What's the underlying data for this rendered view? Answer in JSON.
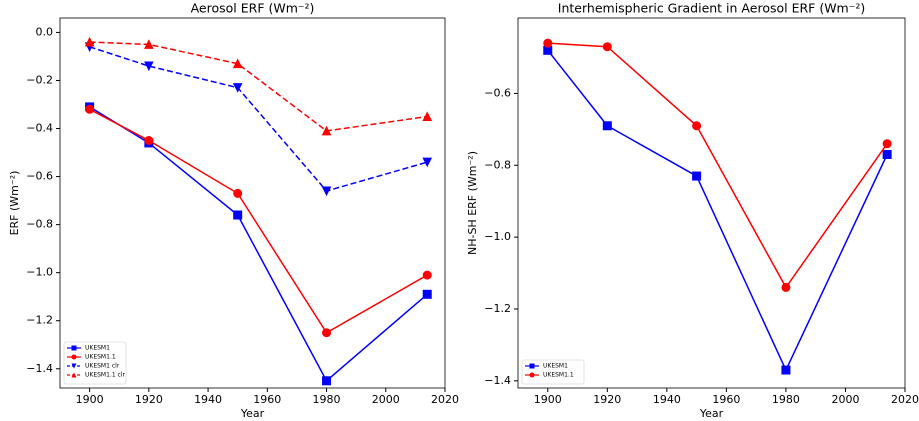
{
  "chart_data": [
    {
      "type": "line",
      "title": "Aerosol ERF (Wm⁻²)",
      "xlabel": "Year",
      "ylabel": "ERF (Wm⁻²)",
      "x": [
        1900,
        1920,
        1950,
        1980,
        2014
      ],
      "series": [
        {
          "name": "UKESM1",
          "color": "#0000ff",
          "marker": "square",
          "linestyle": "solid",
          "values": [
            -0.31,
            -0.46,
            -0.76,
            -1.45,
            -1.09
          ]
        },
        {
          "name": "UKESM1.1",
          "color": "#ff0000",
          "marker": "circle",
          "linestyle": "solid",
          "values": [
            -0.32,
            -0.45,
            -0.67,
            -1.25,
            -1.01
          ]
        },
        {
          "name": "UKESM1 clr",
          "color": "#0000ff",
          "marker": "triangle-down",
          "linestyle": "dashed",
          "values": [
            -0.06,
            -0.14,
            -0.23,
            -0.66,
            -0.54
          ]
        },
        {
          "name": "UKESM1.1 clr",
          "color": "#ff0000",
          "marker": "triangle-up",
          "linestyle": "dashed",
          "values": [
            -0.04,
            -0.05,
            -0.13,
            -0.41,
            -0.35
          ]
        }
      ],
      "xlim": [
        1890,
        2020
      ],
      "xticks": [
        1900,
        1920,
        1940,
        1960,
        1980,
        2000,
        2020
      ],
      "ylim": [
        -1.48,
        0.06
      ],
      "yticks": [
        {
          "value": 0,
          "label": "0.0"
        },
        {
          "value": -0.2,
          "label": "−0.2"
        },
        {
          "value": -0.4,
          "label": "−0.4"
        },
        {
          "value": -0.6,
          "label": "−0.6"
        },
        {
          "value": -0.8,
          "label": "−0.8"
        },
        {
          "value": -1.0,
          "label": "−1.0"
        },
        {
          "value": -1.2,
          "label": "−1.2"
        },
        {
          "value": -1.4,
          "label": "−1.4"
        }
      ],
      "legend": "lower left"
    },
    {
      "type": "line",
      "title": "Interhemispheric Gradient in Aerosol ERF (Wm⁻²)",
      "xlabel": "Year",
      "ylabel": "NH-SH ERF (Wm⁻²)",
      "x": [
        1900,
        1920,
        1950,
        1980,
        2014
      ],
      "series": [
        {
          "name": "UKESM1",
          "color": "#0000ff",
          "marker": "square",
          "linestyle": "solid",
          "values": [
            -0.48,
            -0.69,
            -0.83,
            -1.37,
            -0.77
          ]
        },
        {
          "name": "UKESM1.1",
          "color": "#ff0000",
          "marker": "circle",
          "linestyle": "solid",
          "values": [
            -0.46,
            -0.47,
            -0.69,
            -1.14,
            -0.74
          ]
        }
      ],
      "xlim": [
        1890,
        2020
      ],
      "xticks": [
        1900,
        1920,
        1940,
        1960,
        1980,
        2000,
        2020
      ],
      "ylim": [
        -1.42,
        -0.39
      ],
      "yticks": [
        {
          "value": -0.6,
          "label": "−0.6"
        },
        {
          "value": -0.8,
          "label": "−0.8"
        },
        {
          "value": -1.0,
          "label": "−1.0"
        },
        {
          "value": -1.2,
          "label": "−1.2"
        },
        {
          "value": -1.4,
          "label": "−1.4"
        }
      ],
      "legend": "lower left"
    }
  ]
}
